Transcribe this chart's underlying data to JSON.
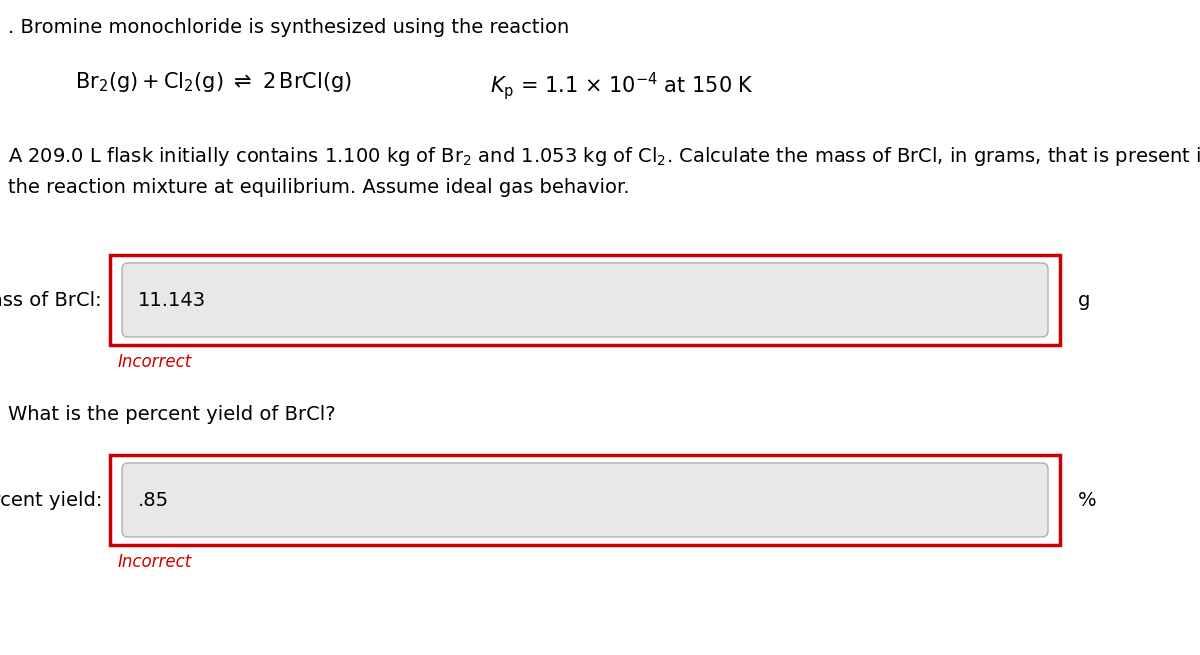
{
  "background_color": "#ffffff",
  "title_line1": ". Bromine monochloride is synthesized using the reaction",
  "problem_text_line1": "A 209.0 L flask initially contains 1.100 kg of Br",
  "problem_text_line1b": " and 1.053 kg of Cl",
  "problem_text_line1c": ". Calculate the mass of BrCl, in grams, that is present in",
  "problem_text_line2": "the reaction mixture at equilibrium. Assume ideal gas behavior.",
  "label1": "mass of BrCl:",
  "value1": "11.143",
  "unit1": "g",
  "feedback1": "Incorrect",
  "label2": "percent yield:",
  "value2": ".85",
  "unit2": "%",
  "question2": "What is the percent yield of BrCl?",
  "feedback2": "Incorrect",
  "text_color": "#000000",
  "incorrect_color": "#cc0000",
  "box_border_color": "#cc0000",
  "input_bg_color": "#e8e8e8",
  "input_border_color": "#b0b0b0",
  "font_size_main": 14,
  "font_size_reaction": 15,
  "font_size_label": 14,
  "font_size_value": 14,
  "font_size_incorrect": 12
}
